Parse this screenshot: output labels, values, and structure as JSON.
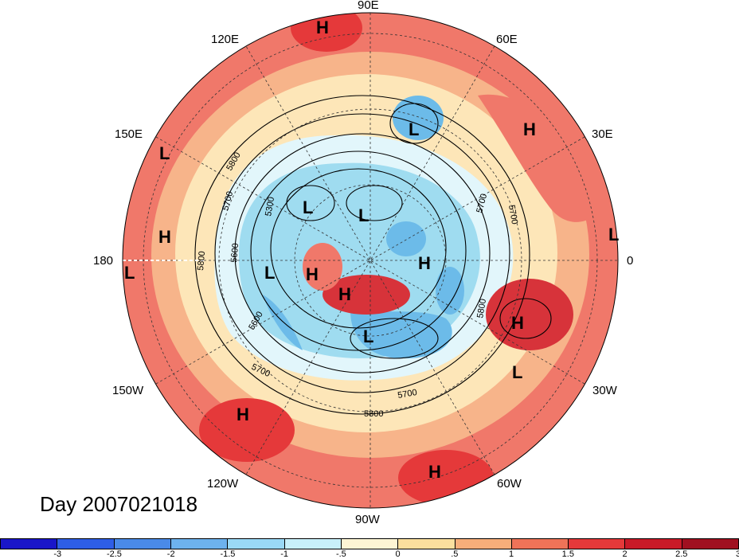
{
  "map": {
    "projection": "north-polar-stereographic",
    "field_colours": {
      "strong_positive": "#d7333a",
      "positive": "#f0786a",
      "weak_positive": "#f7b48a",
      "near_zero_warm": "#fde6b8",
      "near_zero_cool": "#e2f6fb",
      "weak_negative": "#9fdcf0",
      "negative": "#6cbbe9"
    },
    "longitude_labels": [
      "90E",
      "60E",
      "30E",
      "0",
      "30W",
      "60W",
      "90W",
      "120W",
      "150W",
      "180",
      "150E",
      "120E"
    ],
    "contour_labels": [
      "5800",
      "5700",
      "5600",
      "5300",
      "5800",
      "5700",
      "5600",
      "5700",
      "5800",
      "5700",
      "5800",
      "5700"
    ],
    "pressure_centres": [
      "H",
      "L",
      "H",
      "L",
      "L",
      "L",
      "H",
      "L",
      "H",
      "L",
      "H",
      "H",
      "L",
      "H",
      "L",
      "H",
      "H",
      "L"
    ]
  },
  "title": "Day 2007021018",
  "colorbar": {
    "colours": [
      "#1a16c9",
      "#2e5ee6",
      "#4a8ae8",
      "#6db2ee",
      "#9ad9f6",
      "#c8f0fa",
      "#fdf5d4",
      "#fbdf9e",
      "#f7ae7a",
      "#ef7358",
      "#e5393a",
      "#c91a28",
      "#a01020"
    ],
    "tick_labels": [
      "-3",
      "-2.5",
      "-2",
      "-1.5",
      "-1",
      "-.5",
      "0",
      ".5",
      "1",
      "1.5",
      "2",
      "2.5",
      "3"
    ]
  }
}
